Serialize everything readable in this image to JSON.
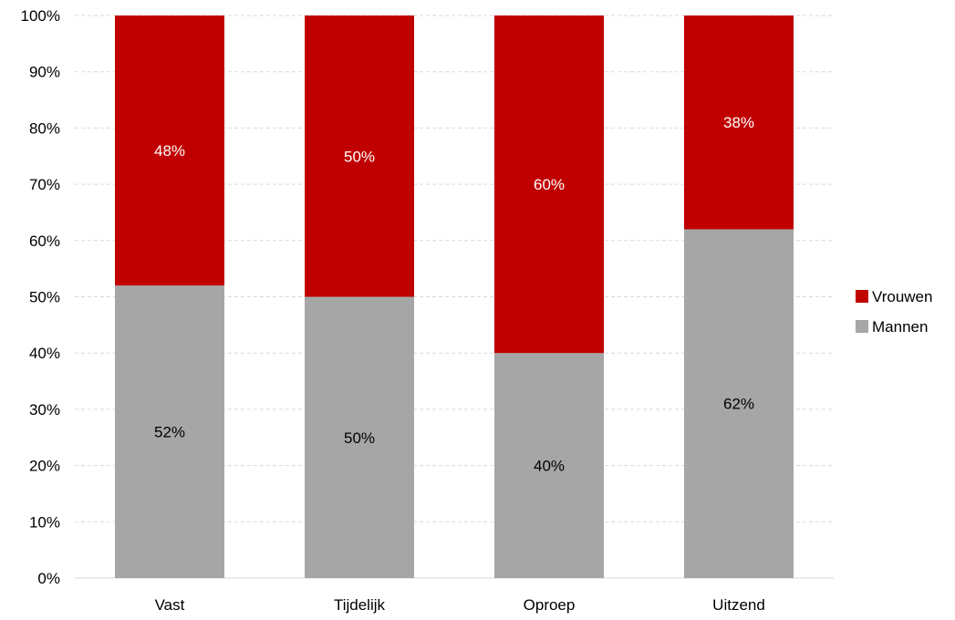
{
  "chart_data": {
    "type": "bar",
    "stacked": true,
    "percent_stacked": true,
    "categories": [
      "Vast",
      "Tijdelijk",
      "Oproep",
      "Uitzend"
    ],
    "series": [
      {
        "name": "Mannen",
        "values": [
          52,
          50,
          40,
          62
        ],
        "labels": [
          "52%",
          "50%",
          "40%",
          "62%"
        ],
        "color": "#a6a6a6",
        "label_color": "#000000"
      },
      {
        "name": "Vrouwen",
        "values": [
          48,
          50,
          60,
          38
        ],
        "labels": [
          "48%",
          "50%",
          "60%",
          "38%"
        ],
        "color": "#c00000",
        "label_color": "#ffffff"
      }
    ],
    "y_ticks": [
      "0%",
      "10%",
      "20%",
      "30%",
      "40%",
      "50%",
      "60%",
      "70%",
      "80%",
      "90%",
      "100%"
    ],
    "ylim": [
      0,
      100
    ],
    "grid": true,
    "legend": {
      "position": "right",
      "order": [
        "Vrouwen",
        "Mannen"
      ]
    },
    "title": "",
    "xlabel": "",
    "ylabel": ""
  }
}
